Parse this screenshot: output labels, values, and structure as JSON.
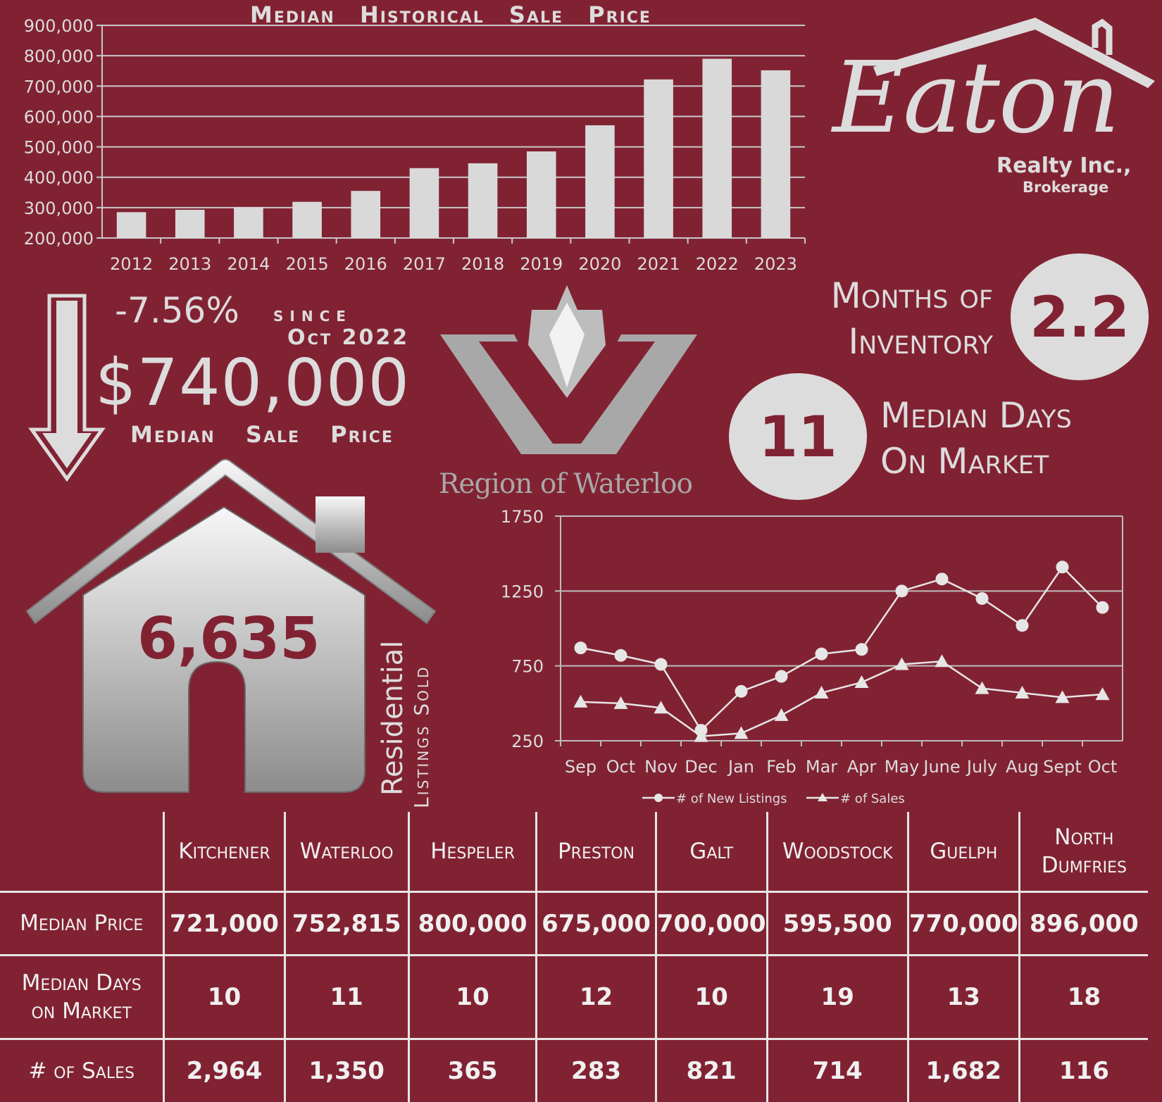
{
  "chart_data": [
    {
      "type": "bar",
      "title": "Median Historical Sale Price",
      "categories": [
        "2012",
        "2013",
        "2014",
        "2015",
        "2016",
        "2017",
        "2018",
        "2019",
        "2020",
        "2021",
        "2022",
        "2023"
      ],
      "values": [
        285000,
        293000,
        302000,
        319000,
        355000,
        430000,
        446000,
        485000,
        571000,
        722000,
        790000,
        752000
      ],
      "ylim": [
        200000,
        900000
      ],
      "yticks": [
        "200,000",
        "300,000",
        "400,000",
        "500,000",
        "600,000",
        "700,000",
        "800,000",
        "900,000"
      ],
      "grid": true,
      "colors": {
        "bar": "#d9d9d9",
        "grid": "#c8c8c8",
        "axis": "#c8c8c8"
      }
    },
    {
      "type": "line",
      "categories": [
        "Sep",
        "Oct",
        "Nov",
        "Dec",
        "Jan",
        "Feb",
        "Mar",
        "Apr",
        "May",
        "June",
        "July",
        "Aug",
        "Sept",
        "Oct"
      ],
      "series": [
        {
          "name": "# of New Listings",
          "marker": "circle",
          "values": [
            870,
            820,
            760,
            320,
            580,
            680,
            830,
            860,
            1250,
            1330,
            1200,
            1020,
            1410,
            1140
          ]
        },
        {
          "name": "# of Sales",
          "marker": "triangle",
          "values": [
            510,
            500,
            470,
            280,
            300,
            420,
            570,
            640,
            760,
            780,
            600,
            570,
            540,
            560
          ]
        }
      ],
      "ylim": [
        250,
        1750
      ],
      "yticks": [
        "250",
        "750",
        "1250",
        "1750"
      ],
      "grid": true,
      "legend": "bottom",
      "colors": {
        "line": "#e6e6e6",
        "grid": "#bdbdbd"
      }
    }
  ],
  "logo": {
    "name": "Eaton",
    "line1": "Realty Inc.,",
    "line2": "Brokerage"
  },
  "region_logo": {
    "text": "Region of Waterloo"
  },
  "summary": {
    "change": "-7.56%",
    "since": "since",
    "since_date": "Oct 2022",
    "median_price": "$740,000",
    "median_price_label": "Median   Sale   Price",
    "months_label_1": "Months of",
    "months_label_2": "Inventory",
    "months_value": "2.2",
    "days_value": "11",
    "days_label_1": "Median Days",
    "days_label_2": "On Market",
    "listings_sold": "6,635",
    "residential": "Residential",
    "listings_sold_label": "Listings Sold"
  },
  "table": {
    "columns": [
      "Kitchener",
      "Waterloo",
      "Hespeler",
      "Preston",
      "Galt",
      "Woodstock",
      "Guelph",
      "North Dumfries"
    ],
    "rows": [
      {
        "label": "Median Price",
        "values": [
          "721,000",
          "752,815",
          "800,000",
          "675,000",
          "700,000",
          "595,500",
          "770,000",
          "896,000"
        ]
      },
      {
        "label": "Median Days on Market",
        "values": [
          "10",
          "11",
          "10",
          "12",
          "10",
          "19",
          "13",
          "18"
        ]
      },
      {
        "label": "# of Sales",
        "values": [
          "2,964",
          "1,350",
          "365",
          "283",
          "821",
          "714",
          "1,682",
          "116"
        ]
      }
    ]
  },
  "colors": {
    "background": "#812233",
    "foreground": "#dcdcdc"
  }
}
